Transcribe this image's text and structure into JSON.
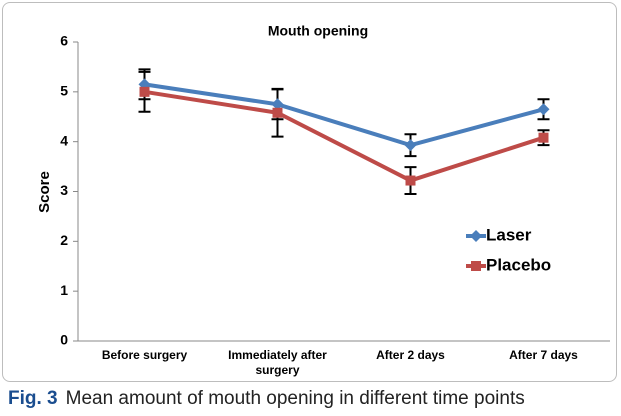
{
  "chart_data": {
    "type": "line",
    "title": "Mouth opening",
    "ylabel": "Score",
    "categories": [
      "Before surgery",
      "Immediately after surgery",
      "After 2 days",
      "After 7 days"
    ],
    "series": [
      {
        "name": "Laser",
        "color": "#4a7ebb",
        "marker": "diamond",
        "values": [
          5.15,
          4.75,
          3.93,
          4.65
        ],
        "errors": [
          0.3,
          0.3,
          0.22,
          0.2
        ]
      },
      {
        "name": "Placebo",
        "color": "#be4b48",
        "marker": "square",
        "values": [
          5.0,
          4.58,
          3.22,
          4.08
        ],
        "errors": [
          0.4,
          0.48,
          0.27,
          0.15
        ]
      }
    ],
    "ylim": [
      0,
      6
    ],
    "yticks": [
      0,
      1,
      2,
      3,
      4,
      5,
      6
    ],
    "grid": false,
    "legend": "right"
  },
  "caption": {
    "label": "Fig. 3",
    "text": "Mean amount of mouth opening in different time points"
  }
}
